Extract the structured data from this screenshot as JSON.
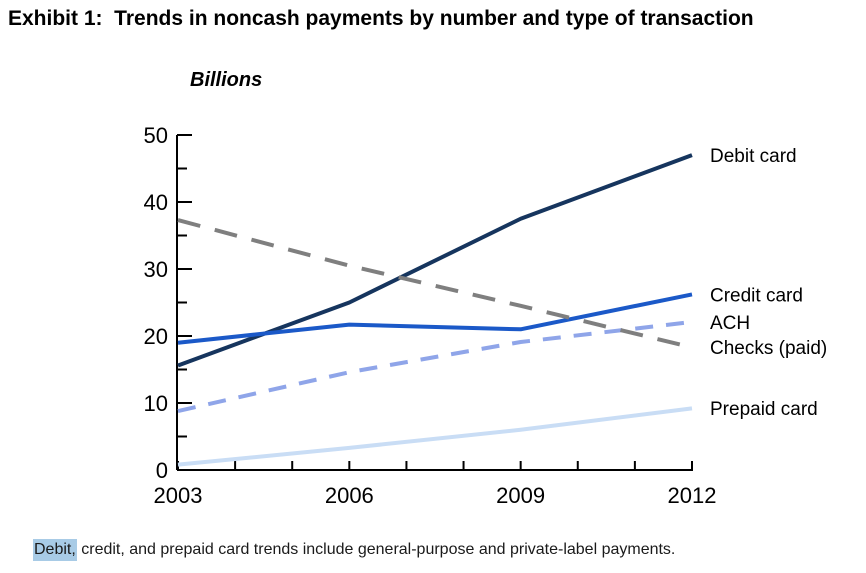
{
  "title": "Exhibit 1:  Trends in noncash payments by number and type of transaction",
  "chart_data": {
    "type": "line",
    "title": "Exhibit 1: Trends in noncash payments by number and type of transaction",
    "ylabel": "Billions",
    "xlabel": "",
    "x": [
      2003,
      2006,
      2009,
      2012
    ],
    "x_tick_labels": [
      "2003",
      "2006",
      "2009",
      "2012"
    ],
    "x_all_ticks": [
      2003,
      2004,
      2005,
      2006,
      2007,
      2008,
      2009,
      2010,
      2011,
      2012
    ],
    "ylim": [
      0,
      50
    ],
    "y_major_ticks": [
      0,
      10,
      20,
      30,
      40,
      50
    ],
    "y_minor_step": 5,
    "grid": false,
    "legend_position": "labels-at-line-ends-right",
    "series": [
      {
        "name": "Debit card",
        "values": [
          15.6,
          25.0,
          37.5,
          47.0
        ],
        "color": "#16355E",
        "style": "solid",
        "dash": null
      },
      {
        "name": "Credit card",
        "values": [
          19.0,
          21.7,
          21.0,
          26.2
        ],
        "color": "#1B59C8",
        "style": "solid",
        "dash": null
      },
      {
        "name": "ACH",
        "values": [
          8.8,
          14.6,
          19.1,
          22.1
        ],
        "color": "#8FA5E9",
        "style": "dashed",
        "dash": [
          18,
          13
        ]
      },
      {
        "name": "Checks (paid)",
        "values": [
          37.3,
          30.5,
          24.5,
          18.3
        ],
        "color": "#7F7F7F",
        "style": "dashed",
        "dash": [
          23,
          15
        ]
      },
      {
        "name": "Prepaid card",
        "values": [
          0.8,
          3.3,
          6.0,
          9.2
        ],
        "color": "#C9DDF5",
        "style": "solid",
        "dash": null
      }
    ]
  },
  "footnote": {
    "highlighted": "Debit,",
    "rest": " credit, and prepaid card trends include general-purpose and private-label payments.",
    "highlight_color": "#A8CBE6"
  }
}
